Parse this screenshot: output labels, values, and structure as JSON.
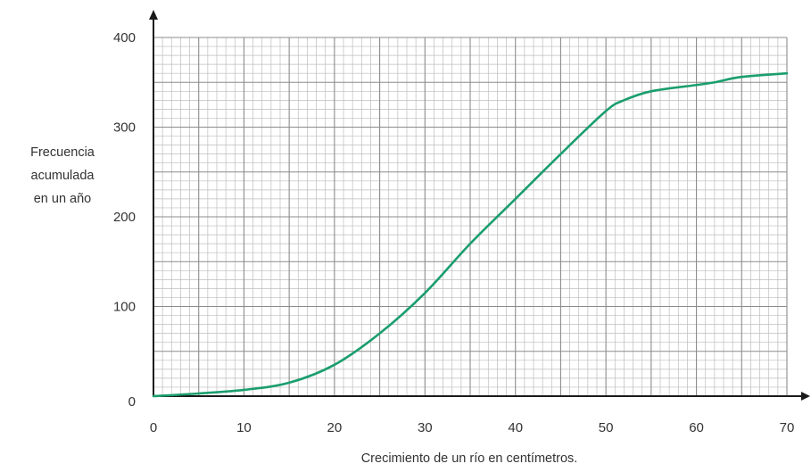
{
  "chart_data": {
    "type": "line",
    "title": "",
    "xlabel": "Crecimiento de un río en centímetros.",
    "ylabel_lines": [
      "Frecuencia",
      "acumulada",
      "en un año"
    ],
    "xlim": [
      0,
      70
    ],
    "ylim": [
      0,
      400
    ],
    "x_ticks": [
      "0",
      "10",
      "20",
      "30",
      "40",
      "50",
      "60",
      "70"
    ],
    "y_ticks": [
      "0",
      "100",
      "200",
      "300",
      "400"
    ],
    "grid": "major every 5 on x and 50 on y, minor every 1 on x and 10 on y",
    "series": [
      {
        "color": "#1a9e6e",
        "x": [
          0,
          5,
          10,
          15,
          20,
          25,
          30,
          35,
          40,
          45,
          50,
          52,
          55,
          60,
          62,
          65,
          70
        ],
        "y": [
          0,
          3,
          7,
          15,
          35,
          70,
          115,
          170,
          220,
          270,
          318,
          330,
          340,
          347,
          350,
          356,
          360
        ]
      }
    ]
  },
  "colors": {
    "curve": "#1a9e6e",
    "grid_major": "#8c8c8c",
    "grid_minor": "#bdbdbd",
    "axis": "#1a1a1a"
  }
}
